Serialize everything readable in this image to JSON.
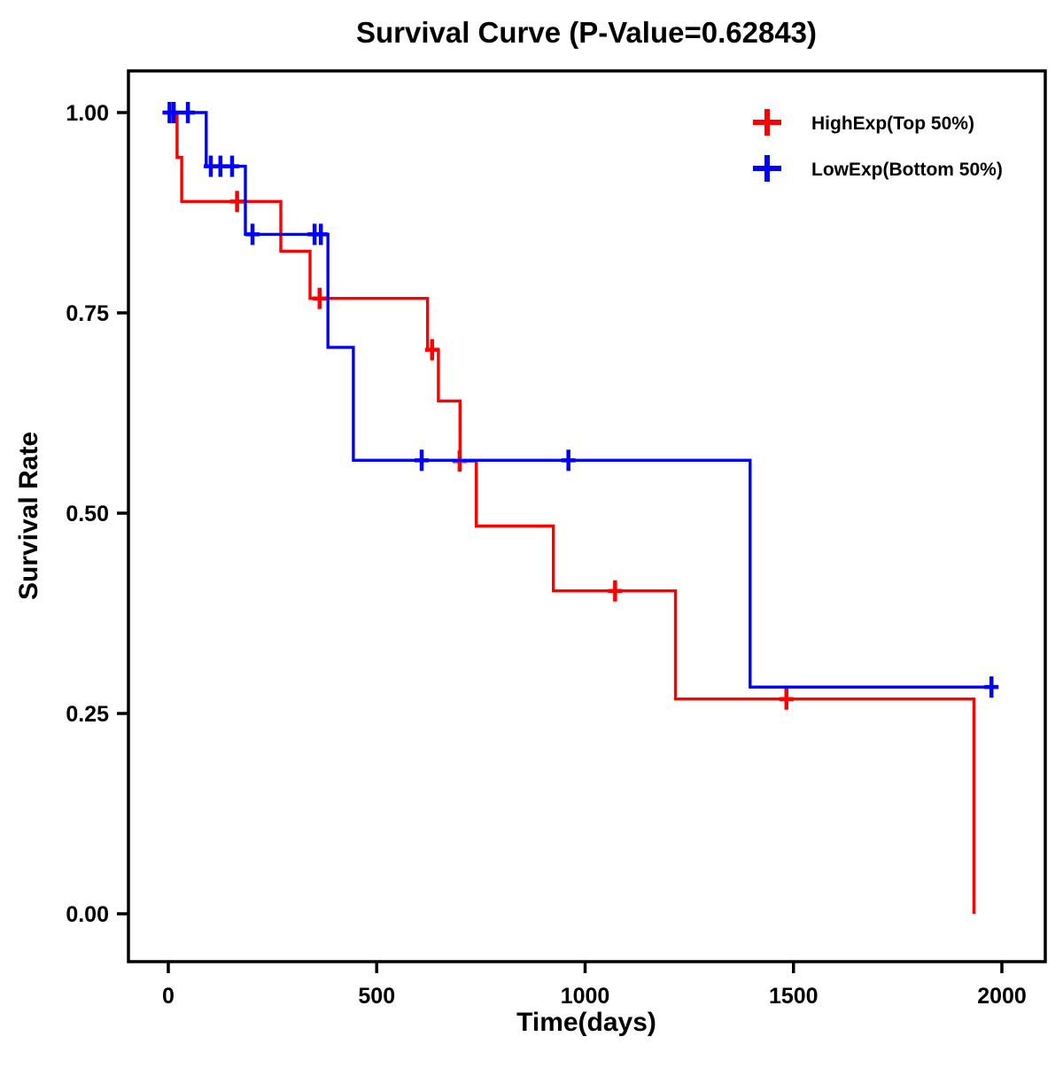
{
  "chart_data": {
    "type": "line",
    "subtype": "kaplan-meier-step",
    "title": "Survival Curve (P-Value=0.62843)",
    "xlabel": "Time(days)",
    "ylabel": "Survival Rate",
    "xlim": [
      0,
      2000
    ],
    "ylim": [
      0.0,
      1.0
    ],
    "x_ticks": [
      0,
      500,
      1000,
      1500,
      2000
    ],
    "y_ticks": [
      0.0,
      0.25,
      0.5,
      0.75,
      1.0
    ],
    "grid": "off",
    "legend_position": "top-right-inside",
    "series": [
      {
        "name": "HighExp(Top 50%)",
        "color": "#FF0000",
        "steps": [
          [
            0,
            1.0
          ],
          [
            21,
            1.0
          ],
          [
            21,
            0.944
          ],
          [
            32,
            0.944
          ],
          [
            32,
            0.889
          ],
          [
            270,
            0.889
          ],
          [
            270,
            0.827
          ],
          [
            340,
            0.827
          ],
          [
            340,
            0.768
          ],
          [
            622,
            0.768
          ],
          [
            622,
            0.704
          ],
          [
            648,
            0.704
          ],
          [
            648,
            0.64
          ],
          [
            700,
            0.64
          ],
          [
            700,
            0.565
          ],
          [
            739,
            0.565
          ],
          [
            739,
            0.484
          ],
          [
            924,
            0.484
          ],
          [
            924,
            0.403
          ],
          [
            1217,
            0.403
          ],
          [
            1217,
            0.268
          ],
          [
            1933,
            0.268
          ],
          [
            1933,
            0.0
          ]
        ],
        "censors": [
          [
            165,
            0.889
          ],
          [
            363,
            0.768
          ],
          [
            633,
            0.704
          ],
          [
            699,
            0.565
          ],
          [
            1072,
            0.403
          ],
          [
            1483,
            0.268
          ]
        ]
      },
      {
        "name": "LowExp(Bottom 50%)",
        "color": "#0000FF",
        "steps": [
          [
            0,
            1.0
          ],
          [
            91,
            1.0
          ],
          [
            91,
            0.933
          ],
          [
            185,
            0.933
          ],
          [
            185,
            0.848
          ],
          [
            383,
            0.848
          ],
          [
            383,
            0.707
          ],
          [
            444,
            0.707
          ],
          [
            444,
            0.566
          ],
          [
            1396,
            0.566
          ],
          [
            1396,
            0.283
          ],
          [
            1975,
            0.283
          ]
        ],
        "censors": [
          [
            3,
            1.0
          ],
          [
            13,
            1.0
          ],
          [
            47,
            1.0
          ],
          [
            102,
            0.933
          ],
          [
            125,
            0.933
          ],
          [
            153,
            0.933
          ],
          [
            202,
            0.848
          ],
          [
            351,
            0.848
          ],
          [
            366,
            0.848
          ],
          [
            608,
            0.566
          ],
          [
            960,
            0.566
          ],
          [
            1975,
            0.283
          ]
        ]
      }
    ]
  }
}
